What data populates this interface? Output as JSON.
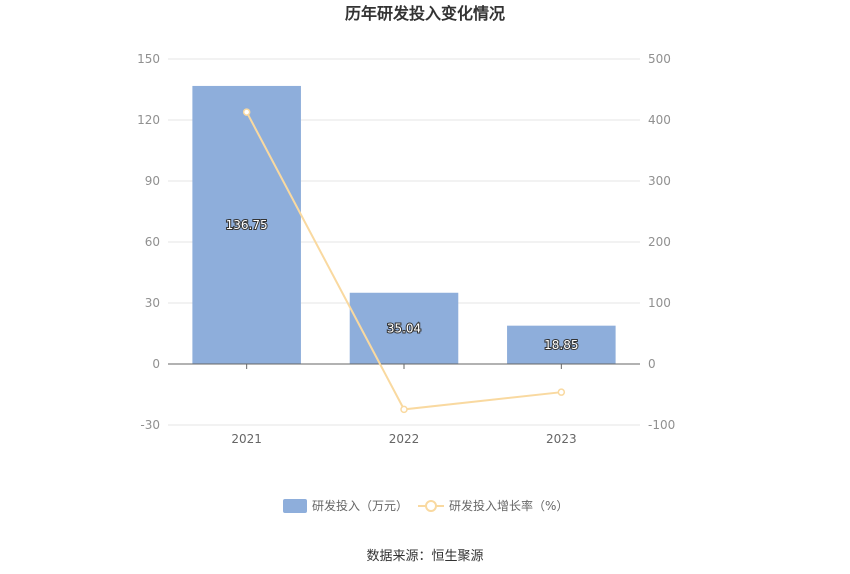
{
  "chart_data": {
    "type": "bar",
    "title": "历年研发投入变化情况",
    "categories": [
      "2021",
      "2022",
      "2023"
    ],
    "series": [
      {
        "name": "研发投入（万元）",
        "type": "bar",
        "axis": "left",
        "values": [
          136.75,
          35.04,
          18.85
        ],
        "labels": [
          "136.75",
          "35.04",
          "18.85"
        ],
        "color": "#8eaedb"
      },
      {
        "name": "研发投入增长率（%）",
        "type": "line",
        "axis": "right",
        "values": [
          413.0,
          -74.4,
          -46.2
        ],
        "color": "#f9d9a0"
      }
    ],
    "left_axis": {
      "min": -30,
      "max": 150,
      "ticks": [
        "150",
        "120",
        "90",
        "60",
        "30",
        "0",
        "-30"
      ]
    },
    "right_axis": {
      "min": -100,
      "max": 500,
      "ticks": [
        "500",
        "400",
        "300",
        "200",
        "100",
        "0",
        "-100"
      ]
    },
    "grid": true,
    "legend_position": "bottom"
  },
  "source": "数据来源：恒生聚源"
}
